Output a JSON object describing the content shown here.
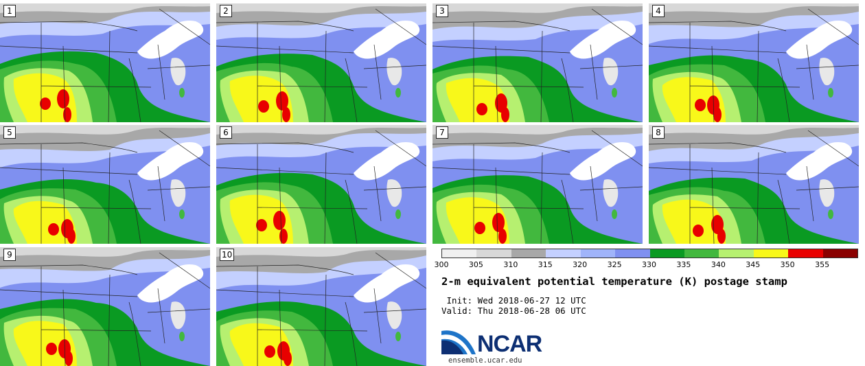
{
  "panels": [
    {
      "label": "1"
    },
    {
      "label": "2"
    },
    {
      "label": "3"
    },
    {
      "label": "4"
    },
    {
      "label": "5"
    },
    {
      "label": "6"
    },
    {
      "label": "7"
    },
    {
      "label": "8"
    },
    {
      "label": "9"
    },
    {
      "label": "10"
    }
  ],
  "colorbar": {
    "ticks": [
      "300",
      "305",
      "310",
      "315",
      "320",
      "325",
      "330",
      "335",
      "340",
      "345",
      "350",
      "355"
    ],
    "colors": [
      "#f0f0f0",
      "#d8d8d8",
      "#a8a8a8",
      "#c4d0ff",
      "#a0b4fa",
      "#7f90f0",
      "#0a9a22",
      "#42b83e",
      "#b6f070",
      "#f8f81a",
      "#e80000",
      "#8a0000"
    ]
  },
  "title": "2-m equivalent potential temperature (K) postage stamp",
  "init": " Init: Wed 2018-06-27 12 UTC",
  "valid": "Valid: Thu 2018-06-28 06 UTC",
  "logo": {
    "text": "NCAR",
    "site": "ensemble.ucar.edu"
  }
}
